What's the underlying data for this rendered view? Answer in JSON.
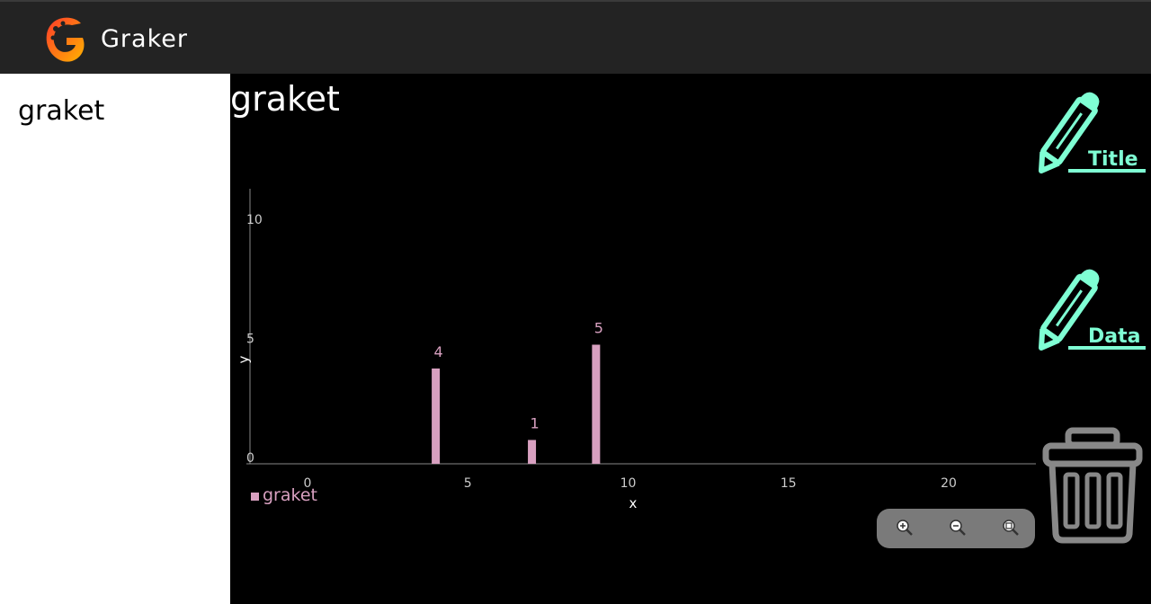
{
  "app": {
    "title": "Graker",
    "logo_icon": "graker-logo-icon"
  },
  "sidebar": {
    "items": [
      {
        "label": "graket"
      }
    ]
  },
  "chart_header": {
    "title": "graket"
  },
  "chart_data": {
    "type": "bar",
    "x": [
      4,
      7,
      9
    ],
    "series": [
      {
        "name": "graket",
        "values": [
          4,
          1,
          5
        ],
        "color": "#d8a0c0"
      }
    ],
    "data_labels": [
      "4",
      "1",
      "5"
    ],
    "xlabel": "x",
    "ylabel": "y",
    "xlim": [
      0,
      22
    ],
    "ylim": [
      0,
      11
    ],
    "xticks": [
      0,
      5,
      10,
      15,
      20
    ],
    "yticks": [
      0,
      5,
      10
    ],
    "grid": false,
    "legend_position": "bottom-left",
    "axis_color": "#888888",
    "tick_label_color": "#cccccc"
  },
  "actions": {
    "title_button": {
      "label": "Title",
      "icon": "pencil-icon",
      "color": "#7fffd4"
    },
    "data_button": {
      "label": "Data",
      "icon": "pencil-icon",
      "color": "#7fffd4"
    },
    "delete_button": {
      "icon": "trash-icon",
      "color": "#888888"
    }
  },
  "zoom_controls": {
    "zoom_in": {
      "icon": "zoom-in-icon"
    },
    "zoom_out": {
      "icon": "zoom-out-icon"
    },
    "reset": {
      "icon": "zoom-reset-icon"
    }
  }
}
